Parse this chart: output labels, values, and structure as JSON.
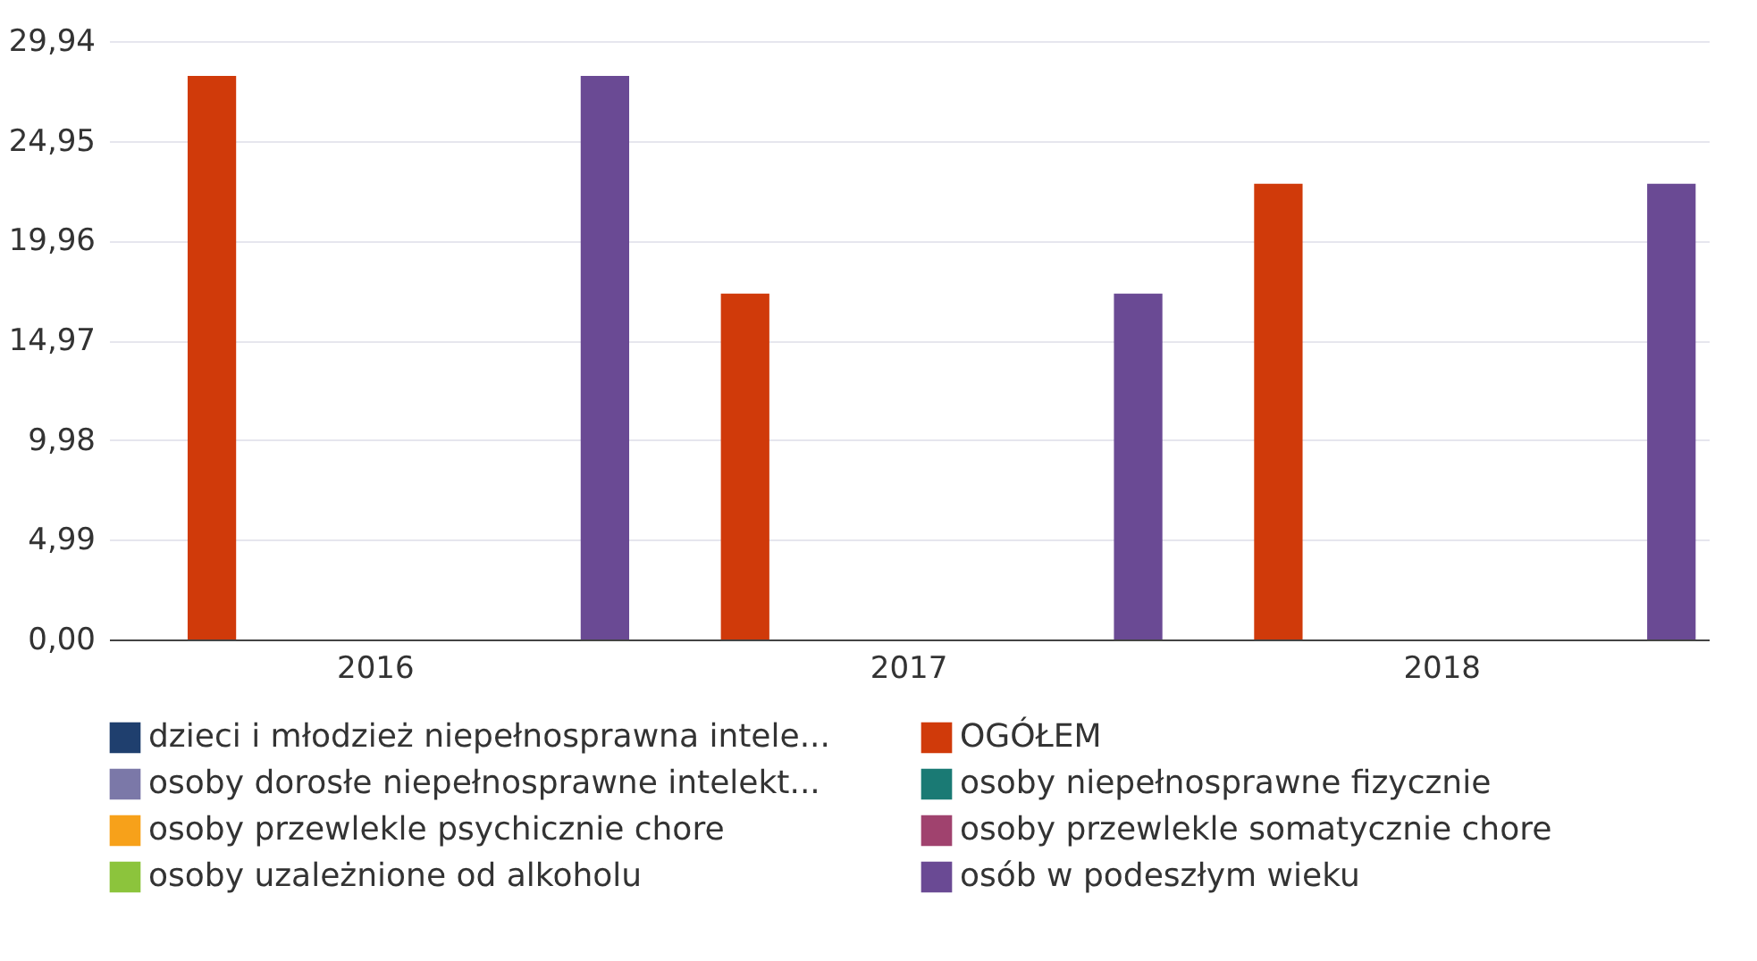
{
  "chart_data": {
    "type": "bar",
    "categories": [
      "2016",
      "2017",
      "2018"
    ],
    "series": [
      {
        "name": "dzieci i młodzież niepełnosprawna intele...",
        "color": "#1f3f6e",
        "values": [
          0,
          0,
          0
        ]
      },
      {
        "name": "OGÓŁEM",
        "color": "#d03a0a",
        "values": [
          28.2,
          17.3,
          22.8
        ]
      },
      {
        "name": "osoby dorosłe niepełnosprawne intelekt...",
        "color": "#7b78a8",
        "values": [
          0,
          0,
          0
        ]
      },
      {
        "name": "osoby niepełnosprawne fizycznie",
        "color": "#1a7a74",
        "values": [
          0,
          0,
          0
        ]
      },
      {
        "name": "osoby przewlekle psychicznie chore",
        "color": "#f7a11a",
        "values": [
          0,
          0,
          0
        ]
      },
      {
        "name": "osoby przewlekle somatycznie chore",
        "color": "#a0426e",
        "values": [
          0,
          0,
          0
        ]
      },
      {
        "name": "osoby uzależnione od alkoholu",
        "color": "#8cc43c",
        "values": [
          0,
          0,
          0
        ]
      },
      {
        "name": "osób w podeszłym wieku",
        "color": "#6a4a94",
        "values": [
          28.2,
          17.3,
          22.8
        ]
      }
    ],
    "ylim": [
      0,
      29.94
    ],
    "yticks": [
      {
        "value": 0,
        "label": "0,00"
      },
      {
        "value": 4.99,
        "label": "4,99"
      },
      {
        "value": 9.98,
        "label": "9,98"
      },
      {
        "value": 14.97,
        "label": "14,97"
      },
      {
        "value": 19.96,
        "label": "19,96"
      },
      {
        "value": 24.95,
        "label": "24,95"
      },
      {
        "value": 29.94,
        "label": "29,94"
      }
    ],
    "grid": "y",
    "legend": "bottom"
  }
}
